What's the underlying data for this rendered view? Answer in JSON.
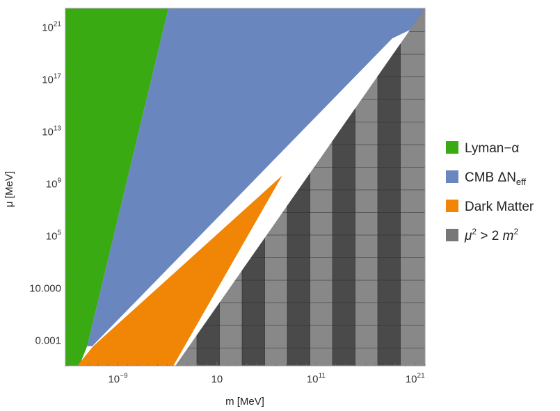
{
  "chart_data": {
    "type": "area",
    "xlabel": "m [MeV]",
    "ylabel": "μ [MeV]",
    "x_scale": "log",
    "y_scale": "log",
    "xlim_log10": [
      -14.3,
      22
    ],
    "ylim_log10": [
      -5.0,
      22.4
    ],
    "x_ticks": [
      {
        "log10": -9,
        "base": "10",
        "exp": "−9"
      },
      {
        "log10": 1,
        "base": "10",
        "exp": ""
      },
      {
        "log10": 11,
        "base": "10",
        "exp": "11"
      },
      {
        "log10": 21,
        "base": "10",
        "exp": "21"
      }
    ],
    "y_ticks": [
      {
        "log10": -3,
        "base": "0.001",
        "exp": ""
      },
      {
        "log10": 1,
        "base": "10.000",
        "exp": ""
      },
      {
        "log10": 5,
        "base": "10",
        "exp": "5"
      },
      {
        "log10": 9,
        "base": "10",
        "exp": "9"
      },
      {
        "log10": 13,
        "base": "10",
        "exp": "13"
      },
      {
        "log10": 17,
        "base": "10",
        "exp": "17"
      },
      {
        "log10": 21,
        "base": "10",
        "exp": "21"
      }
    ],
    "regions": [
      {
        "key": "lyman",
        "color": "#3aaa12",
        "polygon_log10": [
          [
            -14.3,
            22.4
          ],
          [
            -3.9,
            22.4
          ],
          [
            -12.1,
            -3.5
          ],
          [
            -12.9,
            -5.0
          ],
          [
            -14.3,
            -5.0
          ]
        ]
      },
      {
        "key": "cmb",
        "color": "#6a86bf",
        "polygon_log10": [
          [
            -3.9,
            22.4
          ],
          [
            22,
            22.4
          ],
          [
            22,
            21.3
          ],
          [
            18.7,
            20.1
          ],
          [
            -11.6,
            -3.5
          ],
          [
            -12.1,
            -3.5
          ]
        ]
      },
      {
        "key": "dm",
        "color": "#f08506",
        "polygon_log10": [
          [
            -11.5,
            -3.5
          ],
          [
            7.6,
            9.6
          ],
          [
            -3.4,
            -5.0
          ],
          [
            -13.1,
            -5.0
          ]
        ]
      },
      {
        "key": "mu2",
        "color": "#888888",
        "polygon_log10": [
          [
            22,
            22.4
          ],
          [
            22,
            -5.0
          ],
          [
            -3.2,
            -5.0
          ]
        ]
      }
    ],
    "legend": [
      {
        "key": "lyman",
        "label": "Lyman−α",
        "color": "#3aaa12"
      },
      {
        "key": "cmb",
        "label": "CMB ΔN",
        "sub": "eff",
        "color": "#6a86bf"
      },
      {
        "key": "dm",
        "label": "Dark Matter",
        "color": "#f08506"
      },
      {
        "key": "mu2",
        "label_parts": [
          "μ",
          "2",
          " > 2 ",
          "m",
          "2"
        ],
        "color": "#777777"
      }
    ],
    "legend_position": "right",
    "grid": false
  }
}
